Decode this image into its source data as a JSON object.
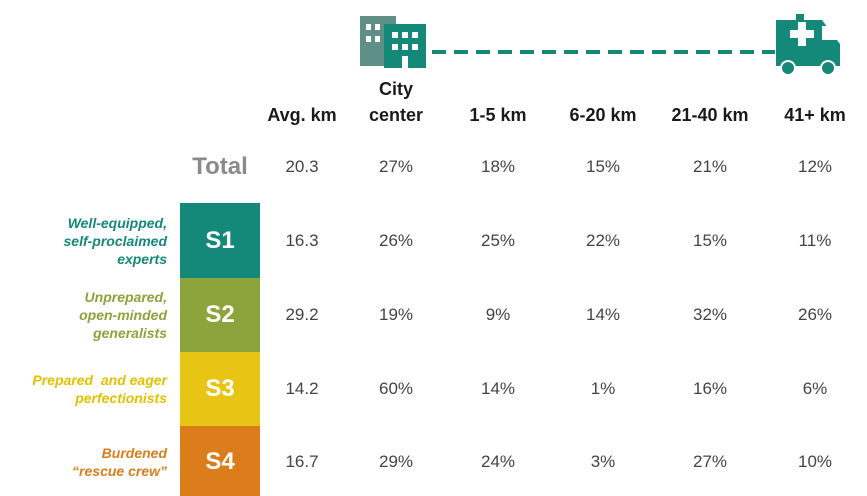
{
  "table": {
    "columns": [
      "Avg. km",
      "City center",
      "1-5 km",
      "6-20 km",
      "21-40 km",
      "41+ km"
    ],
    "total": {
      "label": "Total",
      "values": [
        "20.3",
        "27%",
        "18%",
        "15%",
        "21%",
        "12%"
      ]
    },
    "segments": [
      {
        "code": "S1",
        "color": "#14897a",
        "text_color": "#14897a",
        "description": [
          "Well-equipped,",
          "self-proclaimed",
          "experts"
        ],
        "values": [
          "16.3",
          "26%",
          "25%",
          "22%",
          "15%",
          "11%"
        ]
      },
      {
        "code": "S2",
        "color": "#8da33b",
        "text_color": "#8da33b",
        "description": [
          "Unprepared,",
          "open-minded",
          "generalists"
        ],
        "values": [
          "29.2",
          "19%",
          "9%",
          "14%",
          "32%",
          "26%"
        ]
      },
      {
        "code": "S3",
        "color": "#e8c515",
        "text_color": "#e3c100",
        "description": [
          "Prepared  and eager",
          "perfectionists"
        ],
        "values": [
          "14.2",
          "60%",
          "14%",
          "1%",
          "16%",
          "6%"
        ]
      },
      {
        "code": "S4",
        "color": "#dc7d1c",
        "text_color": "#dc7d1c",
        "description": [
          "Burdened",
          "“rescue crew”"
        ],
        "values": [
          "16.7",
          "29%",
          "24%",
          "3%",
          "27%",
          "10%"
        ]
      }
    ]
  }
}
